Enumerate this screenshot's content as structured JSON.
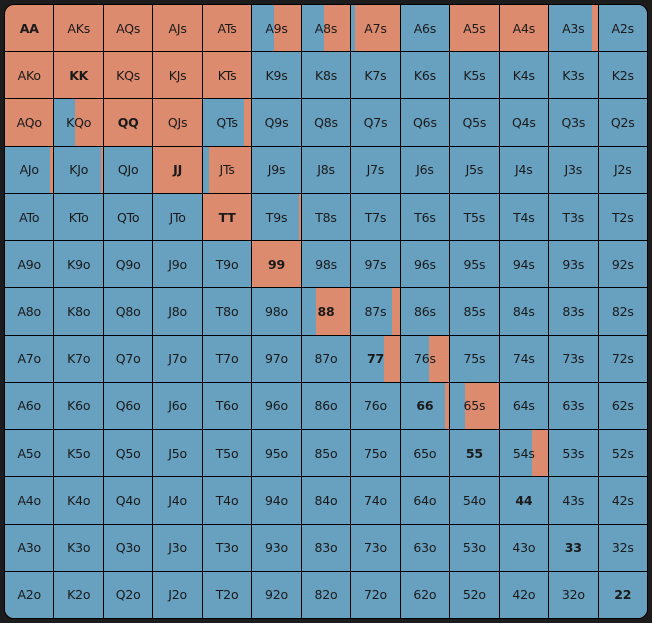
{
  "colors": {
    "raise": "#dd8b6f",
    "fold": "#68a0c0",
    "grid_line": "#000000",
    "background": "#1c1c1c"
  },
  "legend_note": "raise_pct = percentage of cell filled with raise color (right side)",
  "grid": [
    [
      {
        "hand": "AA",
        "raise_pct": 100
      },
      {
        "hand": "AKs",
        "raise_pct": 100
      },
      {
        "hand": "AQs",
        "raise_pct": 100
      },
      {
        "hand": "AJs",
        "raise_pct": 100
      },
      {
        "hand": "ATs",
        "raise_pct": 100
      },
      {
        "hand": "A9s",
        "raise_pct": 55
      },
      {
        "hand": "A8s",
        "raise_pct": 55
      },
      {
        "hand": "A7s",
        "raise_pct": 92
      },
      {
        "hand": "A6s",
        "raise_pct": 0
      },
      {
        "hand": "A5s",
        "raise_pct": 100
      },
      {
        "hand": "A4s",
        "raise_pct": 100
      },
      {
        "hand": "A3s",
        "raise_pct": 12
      },
      {
        "hand": "A2s",
        "raise_pct": 0
      }
    ],
    [
      {
        "hand": "AKo",
        "raise_pct": 100
      },
      {
        "hand": "KK",
        "raise_pct": 100
      },
      {
        "hand": "KQs",
        "raise_pct": 100
      },
      {
        "hand": "KJs",
        "raise_pct": 100
      },
      {
        "hand": "KTs",
        "raise_pct": 100
      },
      {
        "hand": "K9s",
        "raise_pct": 0
      },
      {
        "hand": "K8s",
        "raise_pct": 0
      },
      {
        "hand": "K7s",
        "raise_pct": 0
      },
      {
        "hand": "K6s",
        "raise_pct": 0
      },
      {
        "hand": "K5s",
        "raise_pct": 0
      },
      {
        "hand": "K4s",
        "raise_pct": 0
      },
      {
        "hand": "K3s",
        "raise_pct": 0
      },
      {
        "hand": "K2s",
        "raise_pct": 0
      }
    ],
    [
      {
        "hand": "AQo",
        "raise_pct": 100
      },
      {
        "hand": "KQo",
        "raise_pct": 57
      },
      {
        "hand": "QQ",
        "raise_pct": 100
      },
      {
        "hand": "QJs",
        "raise_pct": 100
      },
      {
        "hand": "QTs",
        "raise_pct": 15
      },
      {
        "hand": "Q9s",
        "raise_pct": 0
      },
      {
        "hand": "Q8s",
        "raise_pct": 0
      },
      {
        "hand": "Q7s",
        "raise_pct": 0
      },
      {
        "hand": "Q6s",
        "raise_pct": 0
      },
      {
        "hand": "Q5s",
        "raise_pct": 0
      },
      {
        "hand": "Q4s",
        "raise_pct": 0
      },
      {
        "hand": "Q3s",
        "raise_pct": 0
      },
      {
        "hand": "Q2s",
        "raise_pct": 0
      }
    ],
    [
      {
        "hand": "AJo",
        "raise_pct": 8
      },
      {
        "hand": "KJo",
        "raise_pct": 4
      },
      {
        "hand": "QJo",
        "raise_pct": 0
      },
      {
        "hand": "JJ",
        "raise_pct": 100
      },
      {
        "hand": "JTs",
        "raise_pct": 87
      },
      {
        "hand": "J9s",
        "raise_pct": 0
      },
      {
        "hand": "J8s",
        "raise_pct": 0
      },
      {
        "hand": "J7s",
        "raise_pct": 0
      },
      {
        "hand": "J6s",
        "raise_pct": 0
      },
      {
        "hand": "J5s",
        "raise_pct": 0
      },
      {
        "hand": "J4s",
        "raise_pct": 0
      },
      {
        "hand": "J3s",
        "raise_pct": 0
      },
      {
        "hand": "J2s",
        "raise_pct": 0
      }
    ],
    [
      {
        "hand": "ATo",
        "raise_pct": 0
      },
      {
        "hand": "KTo",
        "raise_pct": 0
      },
      {
        "hand": "QTo",
        "raise_pct": 0
      },
      {
        "hand": "JTo",
        "raise_pct": 0
      },
      {
        "hand": "TT",
        "raise_pct": 100
      },
      {
        "hand": "T9s",
        "raise_pct": 3
      },
      {
        "hand": "T8s",
        "raise_pct": 0
      },
      {
        "hand": "T7s",
        "raise_pct": 0
      },
      {
        "hand": "T6s",
        "raise_pct": 0
      },
      {
        "hand": "T5s",
        "raise_pct": 0
      },
      {
        "hand": "T4s",
        "raise_pct": 0
      },
      {
        "hand": "T3s",
        "raise_pct": 0
      },
      {
        "hand": "T2s",
        "raise_pct": 0
      }
    ],
    [
      {
        "hand": "A9o",
        "raise_pct": 0
      },
      {
        "hand": "K9o",
        "raise_pct": 0
      },
      {
        "hand": "Q9o",
        "raise_pct": 0
      },
      {
        "hand": "J9o",
        "raise_pct": 0
      },
      {
        "hand": "T9o",
        "raise_pct": 0
      },
      {
        "hand": "99",
        "raise_pct": 100
      },
      {
        "hand": "98s",
        "raise_pct": 0
      },
      {
        "hand": "97s",
        "raise_pct": 0
      },
      {
        "hand": "96s",
        "raise_pct": 0
      },
      {
        "hand": "95s",
        "raise_pct": 0
      },
      {
        "hand": "94s",
        "raise_pct": 0
      },
      {
        "hand": "93s",
        "raise_pct": 0
      },
      {
        "hand": "92s",
        "raise_pct": 0
      }
    ],
    [
      {
        "hand": "A8o",
        "raise_pct": 0
      },
      {
        "hand": "K8o",
        "raise_pct": 0
      },
      {
        "hand": "Q8o",
        "raise_pct": 0
      },
      {
        "hand": "J8o",
        "raise_pct": 0
      },
      {
        "hand": "T8o",
        "raise_pct": 0
      },
      {
        "hand": "98o",
        "raise_pct": 0
      },
      {
        "hand": "88",
        "raise_pct": 70
      },
      {
        "hand": "87s",
        "raise_pct": 15
      },
      {
        "hand": "86s",
        "raise_pct": 0
      },
      {
        "hand": "85s",
        "raise_pct": 0
      },
      {
        "hand": "84s",
        "raise_pct": 0
      },
      {
        "hand": "83s",
        "raise_pct": 0
      },
      {
        "hand": "82s",
        "raise_pct": 0
      }
    ],
    [
      {
        "hand": "A7o",
        "raise_pct": 0
      },
      {
        "hand": "K7o",
        "raise_pct": 0
      },
      {
        "hand": "Q7o",
        "raise_pct": 0
      },
      {
        "hand": "J7o",
        "raise_pct": 0
      },
      {
        "hand": "T7o",
        "raise_pct": 0
      },
      {
        "hand": "97o",
        "raise_pct": 0
      },
      {
        "hand": "87o",
        "raise_pct": 0
      },
      {
        "hand": "77",
        "raise_pct": 33
      },
      {
        "hand": "76s",
        "raise_pct": 42
      },
      {
        "hand": "75s",
        "raise_pct": 0
      },
      {
        "hand": "74s",
        "raise_pct": 0
      },
      {
        "hand": "73s",
        "raise_pct": 0
      },
      {
        "hand": "72s",
        "raise_pct": 0
      }
    ],
    [
      {
        "hand": "A6o",
        "raise_pct": 0
      },
      {
        "hand": "K6o",
        "raise_pct": 0
      },
      {
        "hand": "Q6o",
        "raise_pct": 0
      },
      {
        "hand": "J6o",
        "raise_pct": 0
      },
      {
        "hand": "T6o",
        "raise_pct": 0
      },
      {
        "hand": "96o",
        "raise_pct": 0
      },
      {
        "hand": "86o",
        "raise_pct": 0
      },
      {
        "hand": "76o",
        "raise_pct": 0
      },
      {
        "hand": "66",
        "raise_pct": 8
      },
      {
        "hand": "65s",
        "raise_pct": 70
      },
      {
        "hand": "64s",
        "raise_pct": 0
      },
      {
        "hand": "63s",
        "raise_pct": 0
      },
      {
        "hand": "62s",
        "raise_pct": 0
      }
    ],
    [
      {
        "hand": "A5o",
        "raise_pct": 0
      },
      {
        "hand": "K5o",
        "raise_pct": 0
      },
      {
        "hand": "Q5o",
        "raise_pct": 0
      },
      {
        "hand": "J5o",
        "raise_pct": 0
      },
      {
        "hand": "T5o",
        "raise_pct": 0
      },
      {
        "hand": "95o",
        "raise_pct": 0
      },
      {
        "hand": "85o",
        "raise_pct": 0
      },
      {
        "hand": "75o",
        "raise_pct": 0
      },
      {
        "hand": "65o",
        "raise_pct": 0
      },
      {
        "hand": "55",
        "raise_pct": 0
      },
      {
        "hand": "54s",
        "raise_pct": 33
      },
      {
        "hand": "53s",
        "raise_pct": 0
      },
      {
        "hand": "52s",
        "raise_pct": 0
      }
    ],
    [
      {
        "hand": "A4o",
        "raise_pct": 0
      },
      {
        "hand": "K4o",
        "raise_pct": 0
      },
      {
        "hand": "Q4o",
        "raise_pct": 0
      },
      {
        "hand": "J4o",
        "raise_pct": 0
      },
      {
        "hand": "T4o",
        "raise_pct": 0
      },
      {
        "hand": "94o",
        "raise_pct": 0
      },
      {
        "hand": "84o",
        "raise_pct": 0
      },
      {
        "hand": "74o",
        "raise_pct": 0
      },
      {
        "hand": "64o",
        "raise_pct": 0
      },
      {
        "hand": "54o",
        "raise_pct": 0
      },
      {
        "hand": "44",
        "raise_pct": 0
      },
      {
        "hand": "43s",
        "raise_pct": 0
      },
      {
        "hand": "42s",
        "raise_pct": 0
      }
    ],
    [
      {
        "hand": "A3o",
        "raise_pct": 0
      },
      {
        "hand": "K3o",
        "raise_pct": 0
      },
      {
        "hand": "Q3o",
        "raise_pct": 0
      },
      {
        "hand": "J3o",
        "raise_pct": 0
      },
      {
        "hand": "T3o",
        "raise_pct": 0
      },
      {
        "hand": "93o",
        "raise_pct": 0
      },
      {
        "hand": "83o",
        "raise_pct": 0
      },
      {
        "hand": "73o",
        "raise_pct": 0
      },
      {
        "hand": "63o",
        "raise_pct": 0
      },
      {
        "hand": "53o",
        "raise_pct": 0
      },
      {
        "hand": "43o",
        "raise_pct": 0
      },
      {
        "hand": "33",
        "raise_pct": 0
      },
      {
        "hand": "32s",
        "raise_pct": 0
      }
    ],
    [
      {
        "hand": "A2o",
        "raise_pct": 0
      },
      {
        "hand": "K2o",
        "raise_pct": 0
      },
      {
        "hand": "Q2o",
        "raise_pct": 0
      },
      {
        "hand": "J2o",
        "raise_pct": 0
      },
      {
        "hand": "T2o",
        "raise_pct": 0
      },
      {
        "hand": "92o",
        "raise_pct": 0
      },
      {
        "hand": "82o",
        "raise_pct": 0
      },
      {
        "hand": "72o",
        "raise_pct": 0
      },
      {
        "hand": "62o",
        "raise_pct": 0
      },
      {
        "hand": "52o",
        "raise_pct": 0
      },
      {
        "hand": "42o",
        "raise_pct": 0
      },
      {
        "hand": "32o",
        "raise_pct": 0
      },
      {
        "hand": "22",
        "raise_pct": 0
      }
    ]
  ]
}
